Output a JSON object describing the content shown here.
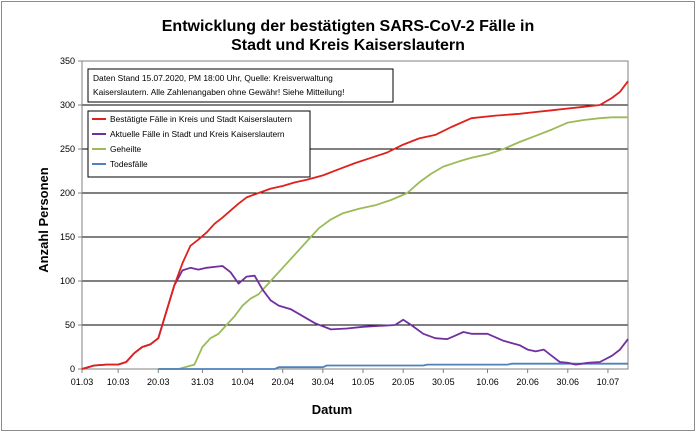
{
  "chart_data": {
    "type": "line",
    "title_line1": "Entwicklung der bestätigten SARS-CoV-2 Fälle in",
    "title_line2": "Stadt und Kreis Kaiserslautern",
    "xlabel": "Datum",
    "ylabel": "Anzahl Personen",
    "note_line1": "Daten Stand 15.07.2020, PM 18:00 Uhr, Quelle: Kreisverwaltung",
    "note_line2": "Kaiserslautern. Alle Zahlenangaben ohne Gewähr! Siehe Mitteilung!",
    "ylim": [
      0,
      350
    ],
    "yticks": [
      "0",
      "50",
      "100",
      "150",
      "200",
      "250",
      "300",
      "350"
    ],
    "xlim": [
      "2020-03-01",
      "2020-07-15"
    ],
    "xticks": [
      "01.03",
      "10.03",
      "20.03",
      "31.03",
      "10.04",
      "20.04",
      "30.04",
      "10.05",
      "20.05",
      "30.05",
      "10.06",
      "20.06",
      "30.06",
      "10.07"
    ],
    "grid": "horizontal",
    "legend_position": "top-left",
    "series": [
      {
        "name": "Bestätigte Fälle in Kreis und Stadt Kaiserslautern",
        "color": "#e0201b",
        "x": [
          "2020-03-01",
          "2020-03-04",
          "2020-03-07",
          "2020-03-10",
          "2020-03-12",
          "2020-03-14",
          "2020-03-16",
          "2020-03-18",
          "2020-03-20",
          "2020-03-22",
          "2020-03-24",
          "2020-03-26",
          "2020-03-28",
          "2020-03-30",
          "2020-04-01",
          "2020-04-03",
          "2020-04-05",
          "2020-04-07",
          "2020-04-09",
          "2020-04-11",
          "2020-04-14",
          "2020-04-17",
          "2020-04-20",
          "2020-04-23",
          "2020-04-26",
          "2020-04-30",
          "2020-05-04",
          "2020-05-08",
          "2020-05-12",
          "2020-05-16",
          "2020-05-20",
          "2020-05-24",
          "2020-05-28",
          "2020-06-01",
          "2020-06-06",
          "2020-06-12",
          "2020-06-18",
          "2020-06-22",
          "2020-06-26",
          "2020-06-30",
          "2020-07-04",
          "2020-07-08",
          "2020-07-11",
          "2020-07-13",
          "2020-07-15"
        ],
        "values": [
          0,
          4,
          5,
          5,
          8,
          18,
          25,
          28,
          35,
          65,
          95,
          120,
          140,
          147,
          155,
          165,
          172,
          180,
          188,
          195,
          200,
          205,
          208,
          212,
          215,
          220,
          227,
          234,
          240,
          246,
          255,
          262,
          266,
          275,
          285,
          288,
          290,
          292,
          294,
          296,
          298,
          300,
          308,
          315,
          327
        ]
      },
      {
        "name": "Aktuelle Fälle in Stadt und Kreis Kaiserslautern",
        "color": "#7030a0",
        "x": [
          "2020-03-01",
          "2020-03-04",
          "2020-03-07",
          "2020-03-10",
          "2020-03-12",
          "2020-03-14",
          "2020-03-16",
          "2020-03-18",
          "2020-03-20",
          "2020-03-22",
          "2020-03-24",
          "2020-03-26",
          "2020-03-28",
          "2020-03-30",
          "2020-04-01",
          "2020-04-03",
          "2020-04-05",
          "2020-04-07",
          "2020-04-09",
          "2020-04-11",
          "2020-04-13",
          "2020-04-15",
          "2020-04-17",
          "2020-04-19",
          "2020-04-22",
          "2020-04-25",
          "2020-04-28",
          "2020-05-02",
          "2020-05-06",
          "2020-05-10",
          "2020-05-14",
          "2020-05-18",
          "2020-05-20",
          "2020-05-22",
          "2020-05-25",
          "2020-05-28",
          "2020-05-31",
          "2020-06-02",
          "2020-06-04",
          "2020-06-06",
          "2020-06-08",
          "2020-06-10",
          "2020-06-14",
          "2020-06-18",
          "2020-06-20",
          "2020-06-22",
          "2020-06-24",
          "2020-06-26",
          "2020-06-28",
          "2020-06-30",
          "2020-07-02",
          "2020-07-05",
          "2020-07-08",
          "2020-07-11",
          "2020-07-13",
          "2020-07-15"
        ],
        "values": [
          0,
          4,
          5,
          5,
          8,
          18,
          25,
          28,
          35,
          65,
          95,
          112,
          115,
          113,
          115,
          116,
          117,
          110,
          97,
          105,
          106,
          90,
          78,
          72,
          68,
          60,
          52,
          45,
          46,
          48,
          49,
          50,
          56,
          50,
          40,
          35,
          34,
          38,
          42,
          40,
          40,
          40,
          32,
          27,
          22,
          20,
          22,
          15,
          8,
          7,
          5,
          7,
          8,
          15,
          22,
          34
        ]
      },
      {
        "name": "Geheilte",
        "color": "#9bbb59",
        "x": [
          "2020-03-20",
          "2020-03-25",
          "2020-03-29",
          "2020-03-31",
          "2020-04-02",
          "2020-04-04",
          "2020-04-06",
          "2020-04-08",
          "2020-04-10",
          "2020-04-12",
          "2020-04-14",
          "2020-04-17",
          "2020-04-20",
          "2020-04-23",
          "2020-04-26",
          "2020-04-29",
          "2020-05-02",
          "2020-05-05",
          "2020-05-09",
          "2020-05-13",
          "2020-05-17",
          "2020-05-21",
          "2020-05-24",
          "2020-05-27",
          "2020-05-30",
          "2020-06-03",
          "2020-06-06",
          "2020-06-10",
          "2020-06-14",
          "2020-06-18",
          "2020-06-22",
          "2020-06-26",
          "2020-06-30",
          "2020-07-04",
          "2020-07-08",
          "2020-07-11",
          "2020-07-15"
        ],
        "values": [
          0,
          0,
          5,
          25,
          35,
          40,
          50,
          60,
          72,
          80,
          85,
          100,
          115,
          130,
          145,
          160,
          170,
          177,
          182,
          186,
          192,
          200,
          212,
          222,
          230,
          236,
          240,
          244,
          250,
          258,
          265,
          272,
          280,
          283,
          285,
          286,
          286
        ]
      },
      {
        "name": "Todesfälle",
        "color": "#4f81bd",
        "x": [
          "2020-03-20",
          "2020-04-18",
          "2020-04-19",
          "2020-04-30",
          "2020-05-01",
          "2020-05-25",
          "2020-05-26",
          "2020-06-15",
          "2020-06-16",
          "2020-07-15"
        ],
        "values": [
          0,
          0,
          2,
          2,
          4,
          4,
          5,
          5,
          6,
          6
        ]
      }
    ]
  }
}
